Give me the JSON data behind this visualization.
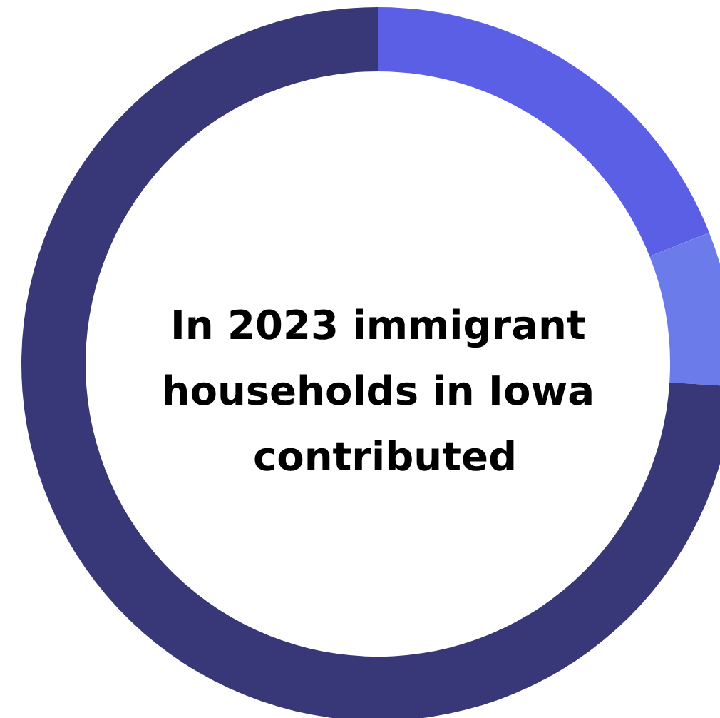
{
  "chart_data": {
    "type": "donut",
    "title": "In 2023 immigrant households in Iowa contributed",
    "categories": [
      null,
      null,
      null
    ],
    "values": [
      19,
      7,
      74
    ],
    "colors": [
      "#5b5fe6",
      "#6c7bea",
      "#383879"
    ]
  }
}
